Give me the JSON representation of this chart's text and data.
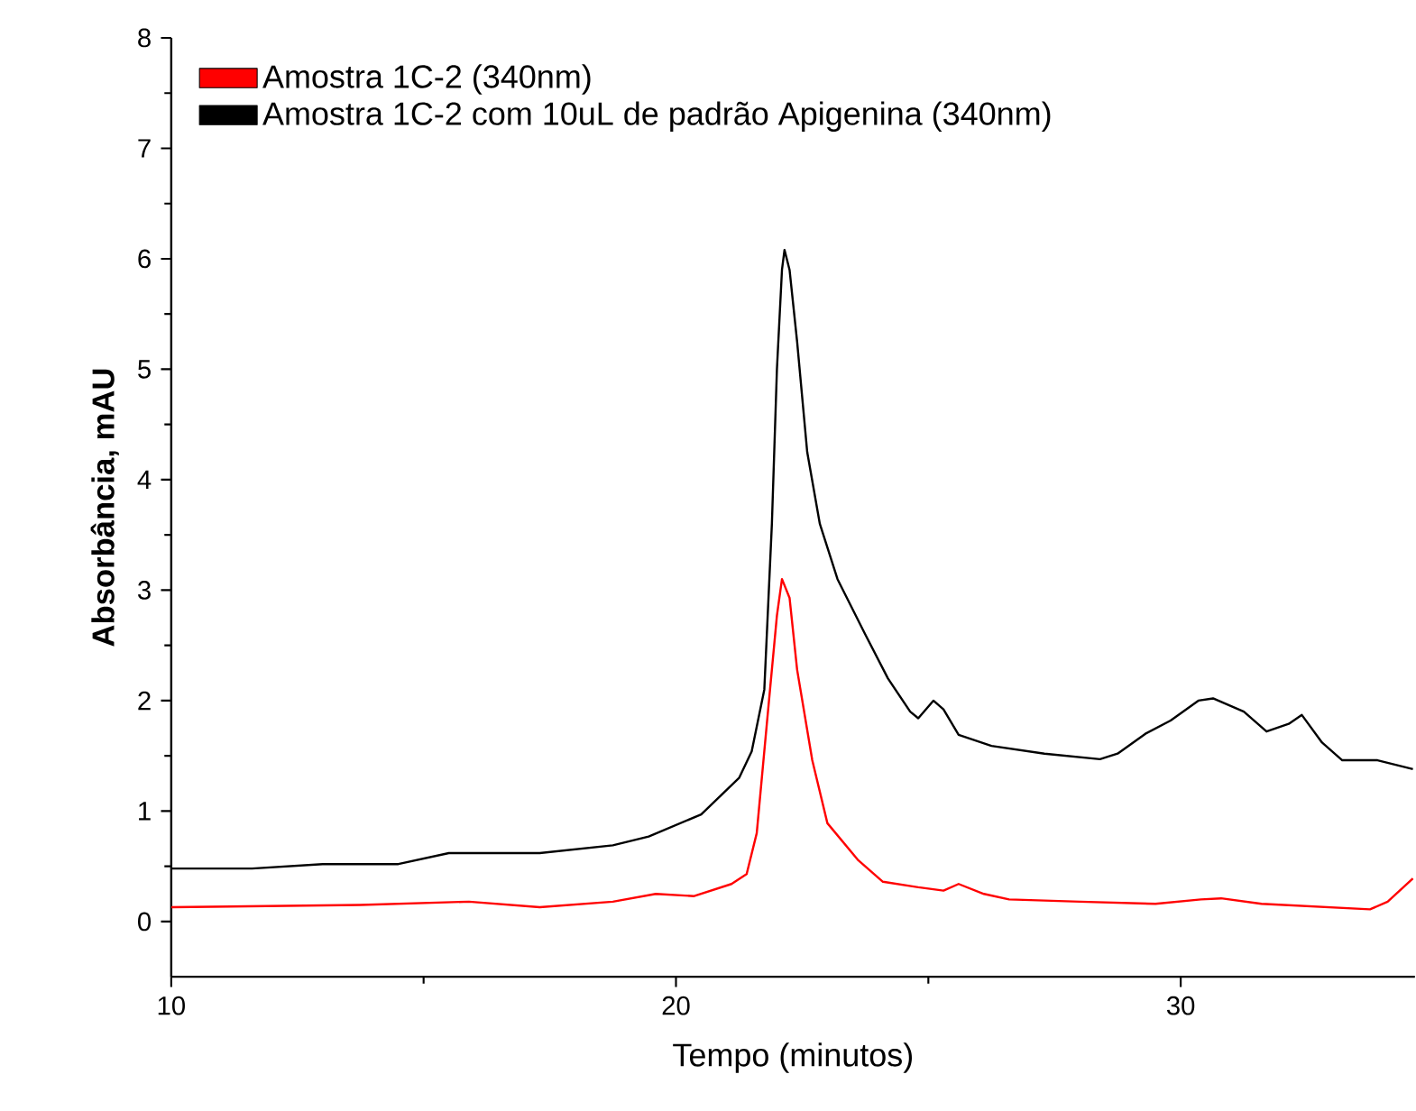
{
  "chart_data": {
    "type": "line",
    "xlabel": "Tempo (minutos)",
    "ylabel": "Absorbância, mAU",
    "xlim": [
      10,
      34.64
    ],
    "ylim": [
      -0.5,
      8
    ],
    "xticks": [
      10,
      20,
      30
    ],
    "yticks": [
      0,
      1,
      2,
      3,
      4,
      5,
      6,
      7,
      8
    ],
    "legend": "top left",
    "grid": false,
    "marker": "none",
    "line_style": "solid",
    "series": [
      {
        "name": "Amostra 1C-2 (340nm)",
        "color": "#ff0000",
        "x": [
          10,
          13.75,
          15.9,
          17.3,
          18.75,
          19.6,
          20.36,
          21.1,
          21.4,
          21.6,
          21.8,
          22.0,
          22.1,
          22.25,
          22.4,
          22.7,
          23.0,
          23.6,
          24.1,
          24.8,
          25.3,
          25.6,
          26.1,
          26.6,
          28.0,
          29.5,
          30.4,
          30.8,
          31.6,
          33.75,
          34.1,
          34.6
        ],
        "values": [
          0.13,
          0.15,
          0.18,
          0.13,
          0.18,
          0.25,
          0.23,
          0.34,
          0.43,
          0.8,
          1.79,
          2.77,
          3.1,
          2.93,
          2.28,
          1.46,
          0.89,
          0.56,
          0.36,
          0.31,
          0.28,
          0.34,
          0.25,
          0.2,
          0.18,
          0.16,
          0.2,
          0.21,
          0.16,
          0.11,
          0.18,
          0.39
        ]
      },
      {
        "name": "Amostra 1C-2 com 10uL de padrão Apigenina (340nm)",
        "color": "#000000",
        "x": [
          10,
          11.6,
          13.0,
          14.5,
          15.5,
          17.3,
          18.75,
          19.46,
          20.5,
          21.25,
          21.5,
          21.75,
          21.9,
          22.0,
          22.1,
          22.15,
          22.25,
          22.4,
          22.6,
          22.85,
          23.2,
          23.75,
          24.2,
          24.64,
          24.8,
          25.1,
          25.3,
          25.6,
          26.25,
          27.3,
          28.4,
          28.75,
          29.3,
          29.8,
          30.35,
          30.64,
          31.25,
          31.7,
          32.14,
          32.4,
          32.8,
          33.2,
          33.9,
          34.6
        ],
        "values": [
          0.48,
          0.48,
          0.52,
          0.52,
          0.62,
          0.62,
          0.69,
          0.77,
          0.97,
          1.3,
          1.54,
          2.1,
          3.6,
          5.0,
          5.9,
          6.08,
          5.9,
          5.25,
          4.25,
          3.6,
          3.1,
          2.6,
          2.2,
          1.9,
          1.84,
          2.0,
          1.92,
          1.69,
          1.59,
          1.52,
          1.47,
          1.52,
          1.7,
          1.82,
          2.0,
          2.02,
          1.9,
          1.72,
          1.79,
          1.87,
          1.62,
          1.46,
          1.46,
          1.38
        ]
      }
    ]
  }
}
